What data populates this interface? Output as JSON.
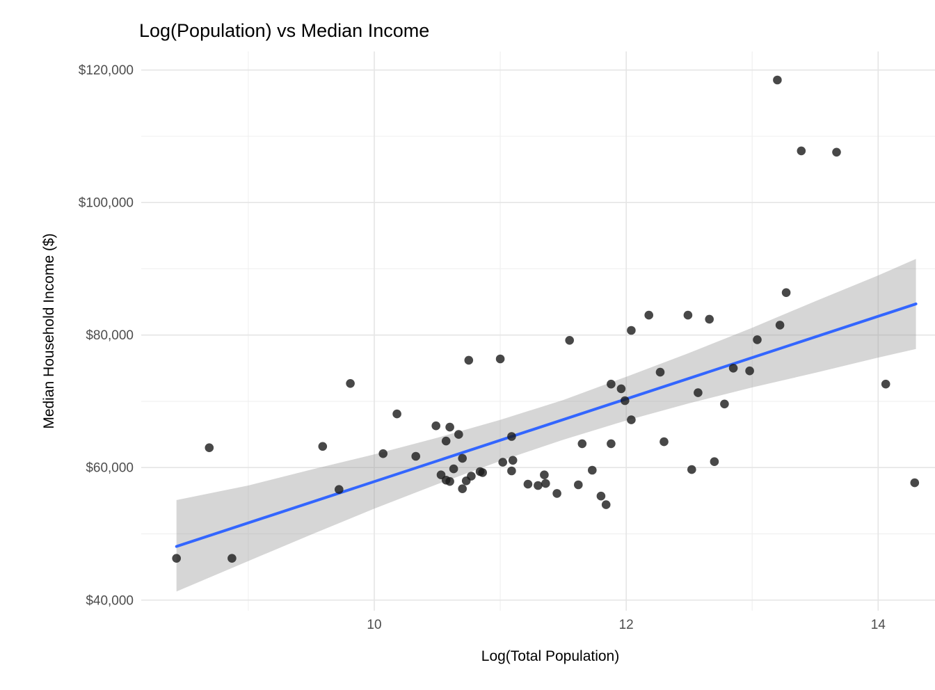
{
  "colors": {
    "background": "#FFFFFF",
    "title_text": "#000000",
    "axis_title_text": "#000000",
    "tick_label_text": "#4D4D4D",
    "grid_major": "#E5E5E5",
    "grid_minor": "#F0F0F0",
    "point_fill": "#1A1A1A",
    "point_opacity": 0.8,
    "trend_line": "#3366FF",
    "confidence_band": "#999999",
    "confidence_band_opacity": 0.4
  },
  "chart_data": {
    "type": "scatter",
    "title": "Log(Population) vs Median Income",
    "xlabel": "Log(Total Population)",
    "ylabel": "Median Household Income ($)",
    "xlim": [
      8.15,
      14.65
    ],
    "ylim": [
      38400,
      122800
    ],
    "grid": true,
    "legend": "none",
    "x_ticks": [
      {
        "value": 10,
        "label": "10"
      },
      {
        "value": 12,
        "label": "12"
      },
      {
        "value": 14,
        "label": "14"
      }
    ],
    "x_minor_ticks": [
      9,
      11,
      13
    ],
    "y_ticks": [
      {
        "value": 40000,
        "label": "$40,000"
      },
      {
        "value": 60000,
        "label": "$60,000"
      },
      {
        "value": 80000,
        "label": "$80,000"
      },
      {
        "value": 100000,
        "label": "$100,000"
      },
      {
        "value": 120000,
        "label": "$120,000"
      }
    ],
    "y_minor_ticks": [
      50000,
      70000,
      90000,
      110000
    ],
    "points": [
      [
        8.43,
        46300
      ],
      [
        8.69,
        63000
      ],
      [
        8.87,
        46300
      ],
      [
        9.59,
        63200
      ],
      [
        9.72,
        56700
      ],
      [
        9.81,
        72700
      ],
      [
        10.07,
        62100
      ],
      [
        10.18,
        68100
      ],
      [
        10.33,
        61700
      ],
      [
        10.49,
        66300
      ],
      [
        10.53,
        58900
      ],
      [
        10.57,
        64000
      ],
      [
        10.57,
        58100
      ],
      [
        10.6,
        66100
      ],
      [
        10.6,
        57900
      ],
      [
        10.63,
        59800
      ],
      [
        10.67,
        65000
      ],
      [
        10.7,
        61400
      ],
      [
        10.7,
        56800
      ],
      [
        10.73,
        58000
      ],
      [
        10.75,
        76200
      ],
      [
        10.77,
        58700
      ],
      [
        10.84,
        59400
      ],
      [
        10.86,
        59250
      ],
      [
        11.0,
        76400
      ],
      [
        11.02,
        60800
      ],
      [
        11.09,
        64700
      ],
      [
        11.09,
        59500
      ],
      [
        11.1,
        61100
      ],
      [
        11.22,
        57500
      ],
      [
        11.3,
        57300
      ],
      [
        11.35,
        58900
      ],
      [
        11.36,
        57600
      ],
      [
        11.45,
        56100
      ],
      [
        11.55,
        79200
      ],
      [
        11.62,
        57400
      ],
      [
        11.65,
        63600
      ],
      [
        11.73,
        59600
      ],
      [
        11.8,
        55700
      ],
      [
        11.84,
        54400
      ],
      [
        11.88,
        63600
      ],
      [
        11.88,
        72600
      ],
      [
        11.96,
        71900
      ],
      [
        11.99,
        70100
      ],
      [
        12.04,
        80700
      ],
      [
        12.04,
        67200
      ],
      [
        12.18,
        83000
      ],
      [
        12.27,
        74400
      ],
      [
        12.3,
        63900
      ],
      [
        12.49,
        83000
      ],
      [
        12.52,
        59700
      ],
      [
        12.57,
        71300
      ],
      [
        12.66,
        82400
      ],
      [
        12.7,
        60900
      ],
      [
        12.78,
        69600
      ],
      [
        12.85,
        75000
      ],
      [
        12.98,
        74600
      ],
      [
        13.04,
        79300
      ],
      [
        13.2,
        118500
      ],
      [
        13.22,
        81500
      ],
      [
        13.27,
        86400
      ],
      [
        13.39,
        107800
      ],
      [
        13.67,
        107600
      ],
      [
        14.06,
        72600
      ],
      [
        14.29,
        57700
      ]
    ],
    "trend_line": {
      "model": "linear",
      "x": [
        8.43,
        14.3
      ],
      "y": [
        48100,
        84700
      ]
    },
    "confidence_band": {
      "x": [
        8.43,
        9.0,
        9.5,
        10.0,
        10.5,
        11.0,
        11.5,
        12.0,
        12.5,
        13.0,
        13.5,
        14.0,
        14.3
      ],
      "upper": [
        55100,
        57300,
        59700,
        62000,
        64500,
        67200,
        70200,
        73700,
        77300,
        81100,
        85100,
        89000,
        91500
      ],
      "lower": [
        41300,
        45900,
        49900,
        53800,
        57500,
        61000,
        64200,
        67100,
        69700,
        72100,
        74300,
        76600,
        77900
      ]
    }
  }
}
